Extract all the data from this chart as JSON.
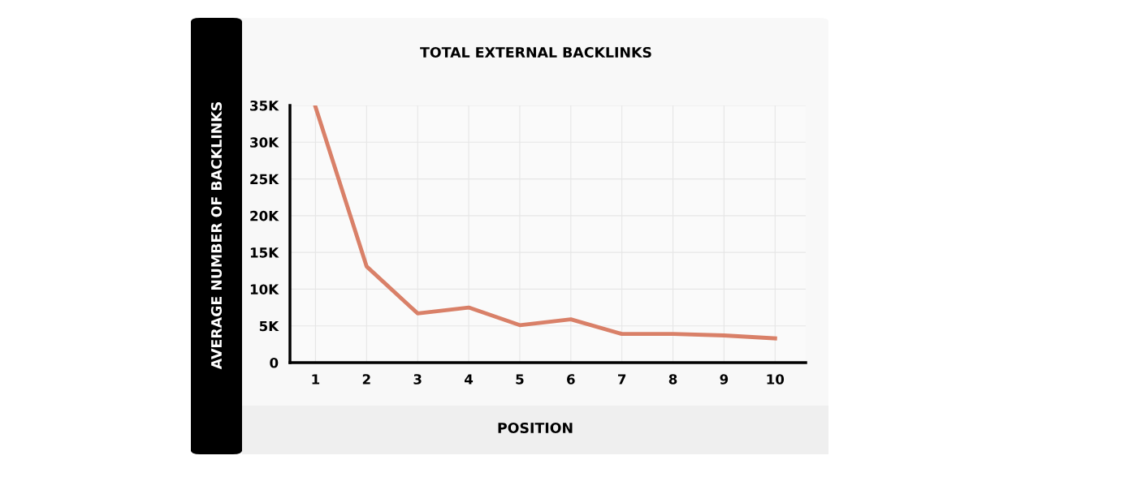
{
  "chart_data": {
    "type": "line",
    "title": "TOTAL EXTERNAL BACKLINKS",
    "xlabel": "POSITION",
    "ylabel": "AVERAGE NUMBER OF BACKLINKS",
    "categories": [
      "1",
      "2",
      "3",
      "4",
      "5",
      "6",
      "7",
      "8",
      "9",
      "10"
    ],
    "series": [
      {
        "color": "#d98068",
        "values": [
          34800,
          13100,
          6700,
          7500,
          5100,
          5900,
          3900,
          3900,
          3700,
          3300
        ]
      }
    ],
    "ylim": [
      0,
      35000
    ],
    "yticks": [
      0,
      {
        "value": 5000,
        "label": "5K"
      },
      {
        "value": 10000,
        "label": "10K"
      },
      {
        "value": 15000,
        "label": "15K"
      },
      {
        "value": 20000,
        "label": "20K"
      },
      {
        "value": 25000,
        "label": "25K"
      },
      {
        "value": 30000,
        "label": "30K"
      },
      {
        "value": 35000,
        "label": "35K"
      }
    ],
    "grid": true,
    "marker": "none",
    "line_style": "solid"
  }
}
